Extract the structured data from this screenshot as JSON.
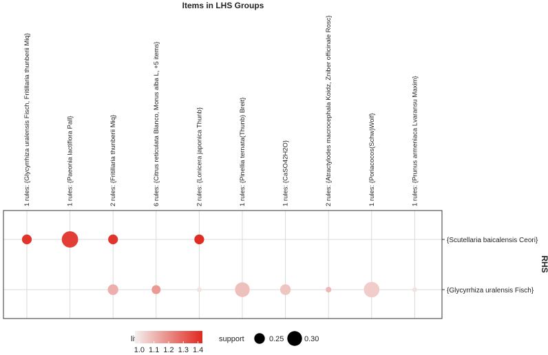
{
  "chart_data": {
    "type": "scatter",
    "title": "Items in LHS Groups",
    "ylabel": "RHS",
    "columns": [
      "1 rules: {Glycyrrhiza uralensis Fisch, Fritillaria thunberii Miq}",
      "1 rules: {Paeonia lactiflora Pall}",
      "2 rules: {Fritillaria thunberii Miq}",
      "6 rules: {Citrus reticulata Blanco, Morus alba L, +5 items}",
      "2 rules: {Lonicera japonica Thunb}",
      "1 rules: {Pinellia ternata(Thunb) Breit}",
      "1 rules: {CaSO42H2O}",
      "2 rules: {Atractylodes macrocephala Koidz, Zniber officinale Rosc}",
      "1 rules: {Poriacocos(Schw)Wolf}",
      "1 rules: {Prunus armeniaca Lvaransu Maxim}"
    ],
    "rows": [
      "{Scutellaria baicalensis Ceori}",
      "{Glycyrrhiza uralensis Fisch}"
    ],
    "points": [
      {
        "col": 0,
        "row": 0,
        "lift": 1.4,
        "support": 0.24
      },
      {
        "col": 1,
        "row": 0,
        "lift": 1.38,
        "support": 0.32
      },
      {
        "col": 2,
        "row": 0,
        "lift": 1.4,
        "support": 0.24
      },
      {
        "col": 4,
        "row": 0,
        "lift": 1.42,
        "support": 0.24
      },
      {
        "col": 2,
        "row": 1,
        "lift": 1.12,
        "support": 0.25
      },
      {
        "col": 3,
        "row": 1,
        "lift": 1.17,
        "support": 0.23
      },
      {
        "col": 4,
        "row": 1,
        "lift": 1.0,
        "support": 0.18
      },
      {
        "col": 5,
        "row": 1,
        "lift": 1.08,
        "support": 0.3
      },
      {
        "col": 6,
        "row": 1,
        "lift": 1.07,
        "support": 0.25
      },
      {
        "col": 7,
        "row": 1,
        "lift": 1.1,
        "support": 0.19
      },
      {
        "col": 8,
        "row": 1,
        "lift": 1.05,
        "support": 0.31
      },
      {
        "col": 9,
        "row": 1,
        "lift": 1.0,
        "support": 0.18
      }
    ],
    "legend": {
      "lift": {
        "title": "lift",
        "ticks": [
          "1.0",
          "1.1",
          "1.2",
          "1.3",
          "1.4"
        ],
        "range": [
          0.97,
          1.43
        ],
        "colors": [
          "#f3f0ef",
          "#e0281e"
        ]
      },
      "support": {
        "title": "support",
        "entries": [
          {
            "label": "0.25",
            "value": 0.25
          },
          {
            "label": "0.30",
            "value": 0.3
          }
        ]
      }
    }
  }
}
